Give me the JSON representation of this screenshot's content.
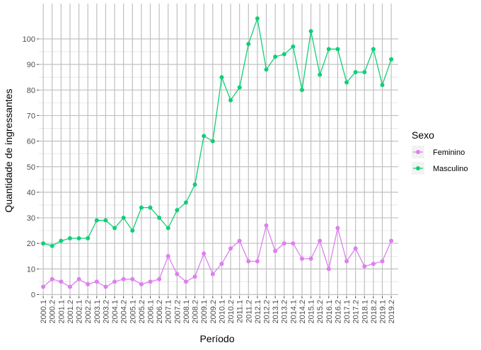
{
  "chart_data": {
    "type": "line",
    "xlabel": "Período",
    "ylabel": "Quantidade de ingressantes",
    "ylim": [
      0,
      110
    ],
    "yticks": [
      0,
      10,
      20,
      30,
      40,
      50,
      60,
      70,
      80,
      90,
      100
    ],
    "grid": true,
    "legend": {
      "title": "Sexo",
      "position": "right"
    },
    "categories": [
      "2000.1",
      "2000.2",
      "2001.1",
      "2001.2",
      "2002.1",
      "2002.2",
      "2003.1",
      "2003.2",
      "2004.1",
      "2004.2",
      "2005.1",
      "2005.2",
      "2006.1",
      "2006.2",
      "2007.1",
      "2007.2",
      "2008.1",
      "2008.2",
      "2009.1",
      "2009.2",
      "2010.1",
      "2010.2",
      "2011.1",
      "2011.2",
      "2012.1",
      "2012.2",
      "2013.1",
      "2013.2",
      "2014.1",
      "2014.2",
      "2015.1",
      "2015.2",
      "2016.1",
      "2016.2",
      "2017.1",
      "2017.2",
      "2018.1",
      "2018.2",
      "2019.1",
      "2019.2"
    ],
    "series": [
      {
        "name": "Feminino",
        "color": "#df7ef0",
        "values": [
          3,
          6,
          5,
          3,
          6,
          4,
          5,
          3,
          5,
          6,
          6,
          4,
          5,
          6,
          15,
          8,
          5,
          7,
          16,
          8,
          12,
          18,
          21,
          13,
          13,
          27,
          17,
          20,
          20,
          14,
          14,
          21,
          10,
          26,
          13,
          18,
          11,
          12,
          13,
          21
        ]
      },
      {
        "name": "Masculino",
        "color": "#0fcf77",
        "values": [
          20,
          19,
          21,
          22,
          22,
          22,
          29,
          29,
          26,
          30,
          25,
          34,
          34,
          30,
          26,
          33,
          36,
          43,
          62,
          60,
          85,
          76,
          81,
          98,
          108,
          88,
          93,
          94,
          97,
          80,
          103,
          86,
          96,
          96,
          83,
          87,
          87,
          96,
          82,
          92
        ]
      }
    ]
  }
}
